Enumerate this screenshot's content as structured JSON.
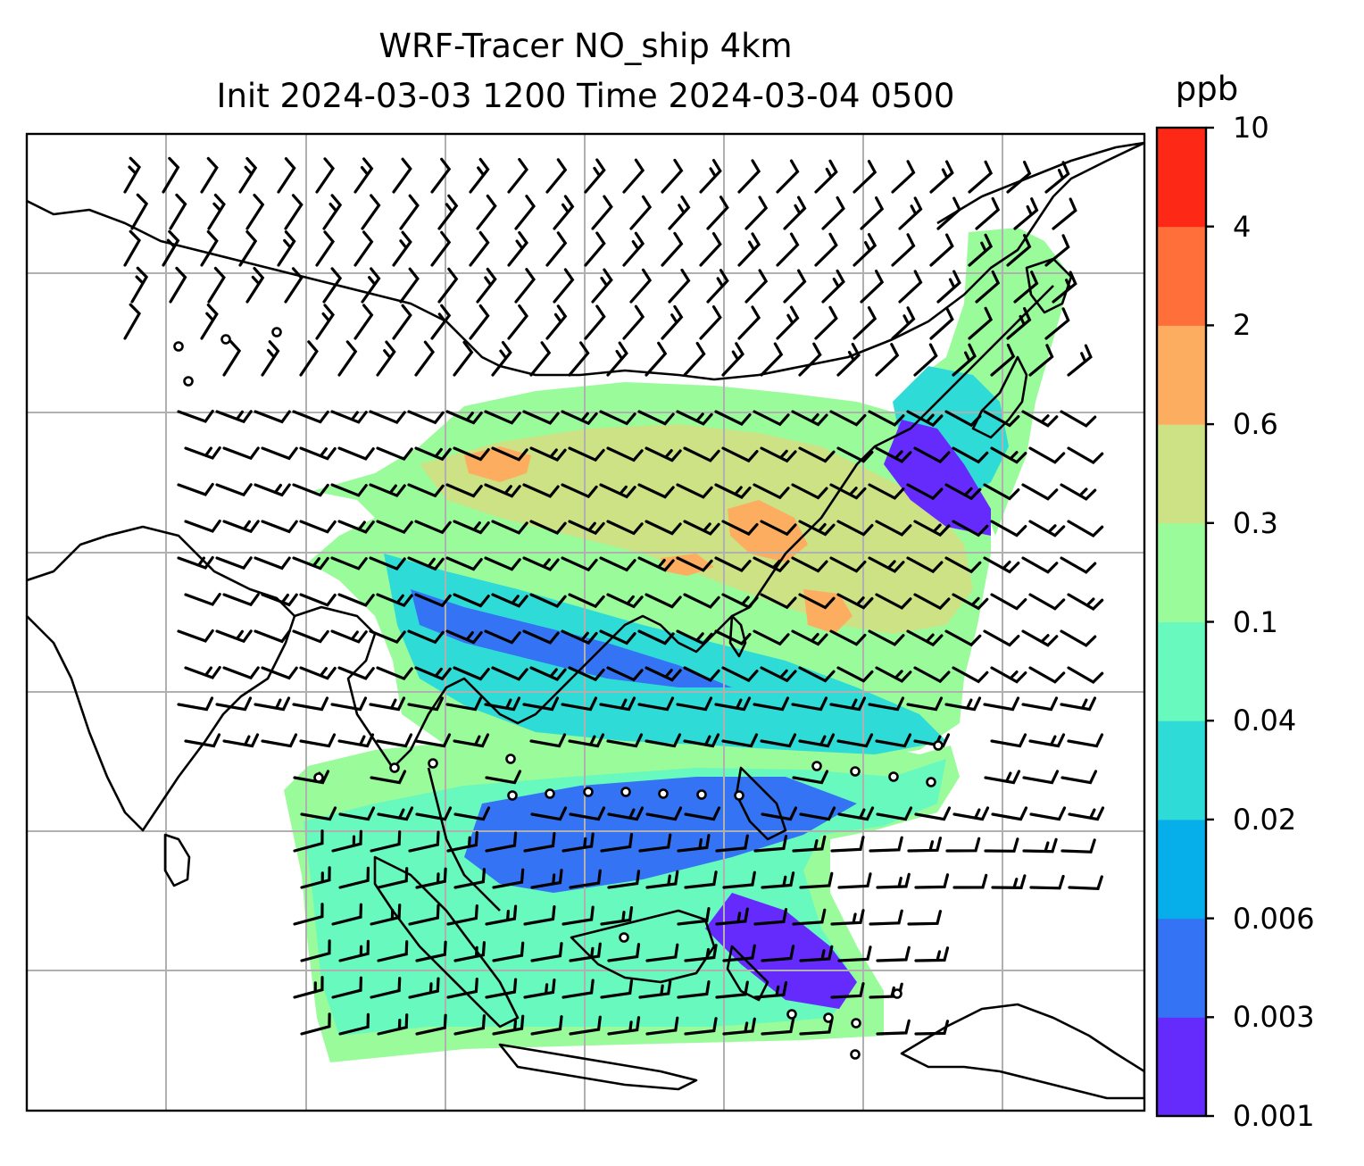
{
  "title": {
    "line1": "WRF-Tracer NO_ship 4km",
    "line2": "Init 2024-03-03 1200 Time 2024-03-04 0500"
  },
  "colorbar": {
    "unit": "ppb",
    "levels": [
      "0.001",
      "0.003",
      "0.006",
      "0.02",
      "0.04",
      "0.1",
      "0.3",
      "0.6",
      "2",
      "4",
      "10"
    ],
    "colors": [
      "#652bfd",
      "#3474f4",
      "#06aeea",
      "#2fdbd6",
      "#67f9bd",
      "#9afb9b",
      "#cce285",
      "#fdad60",
      "#fe6f39",
      "#fe2816"
    ]
  },
  "map": {
    "gridlines": true,
    "tracer_field": "NO_ship",
    "barb_color": "#000000"
  }
}
